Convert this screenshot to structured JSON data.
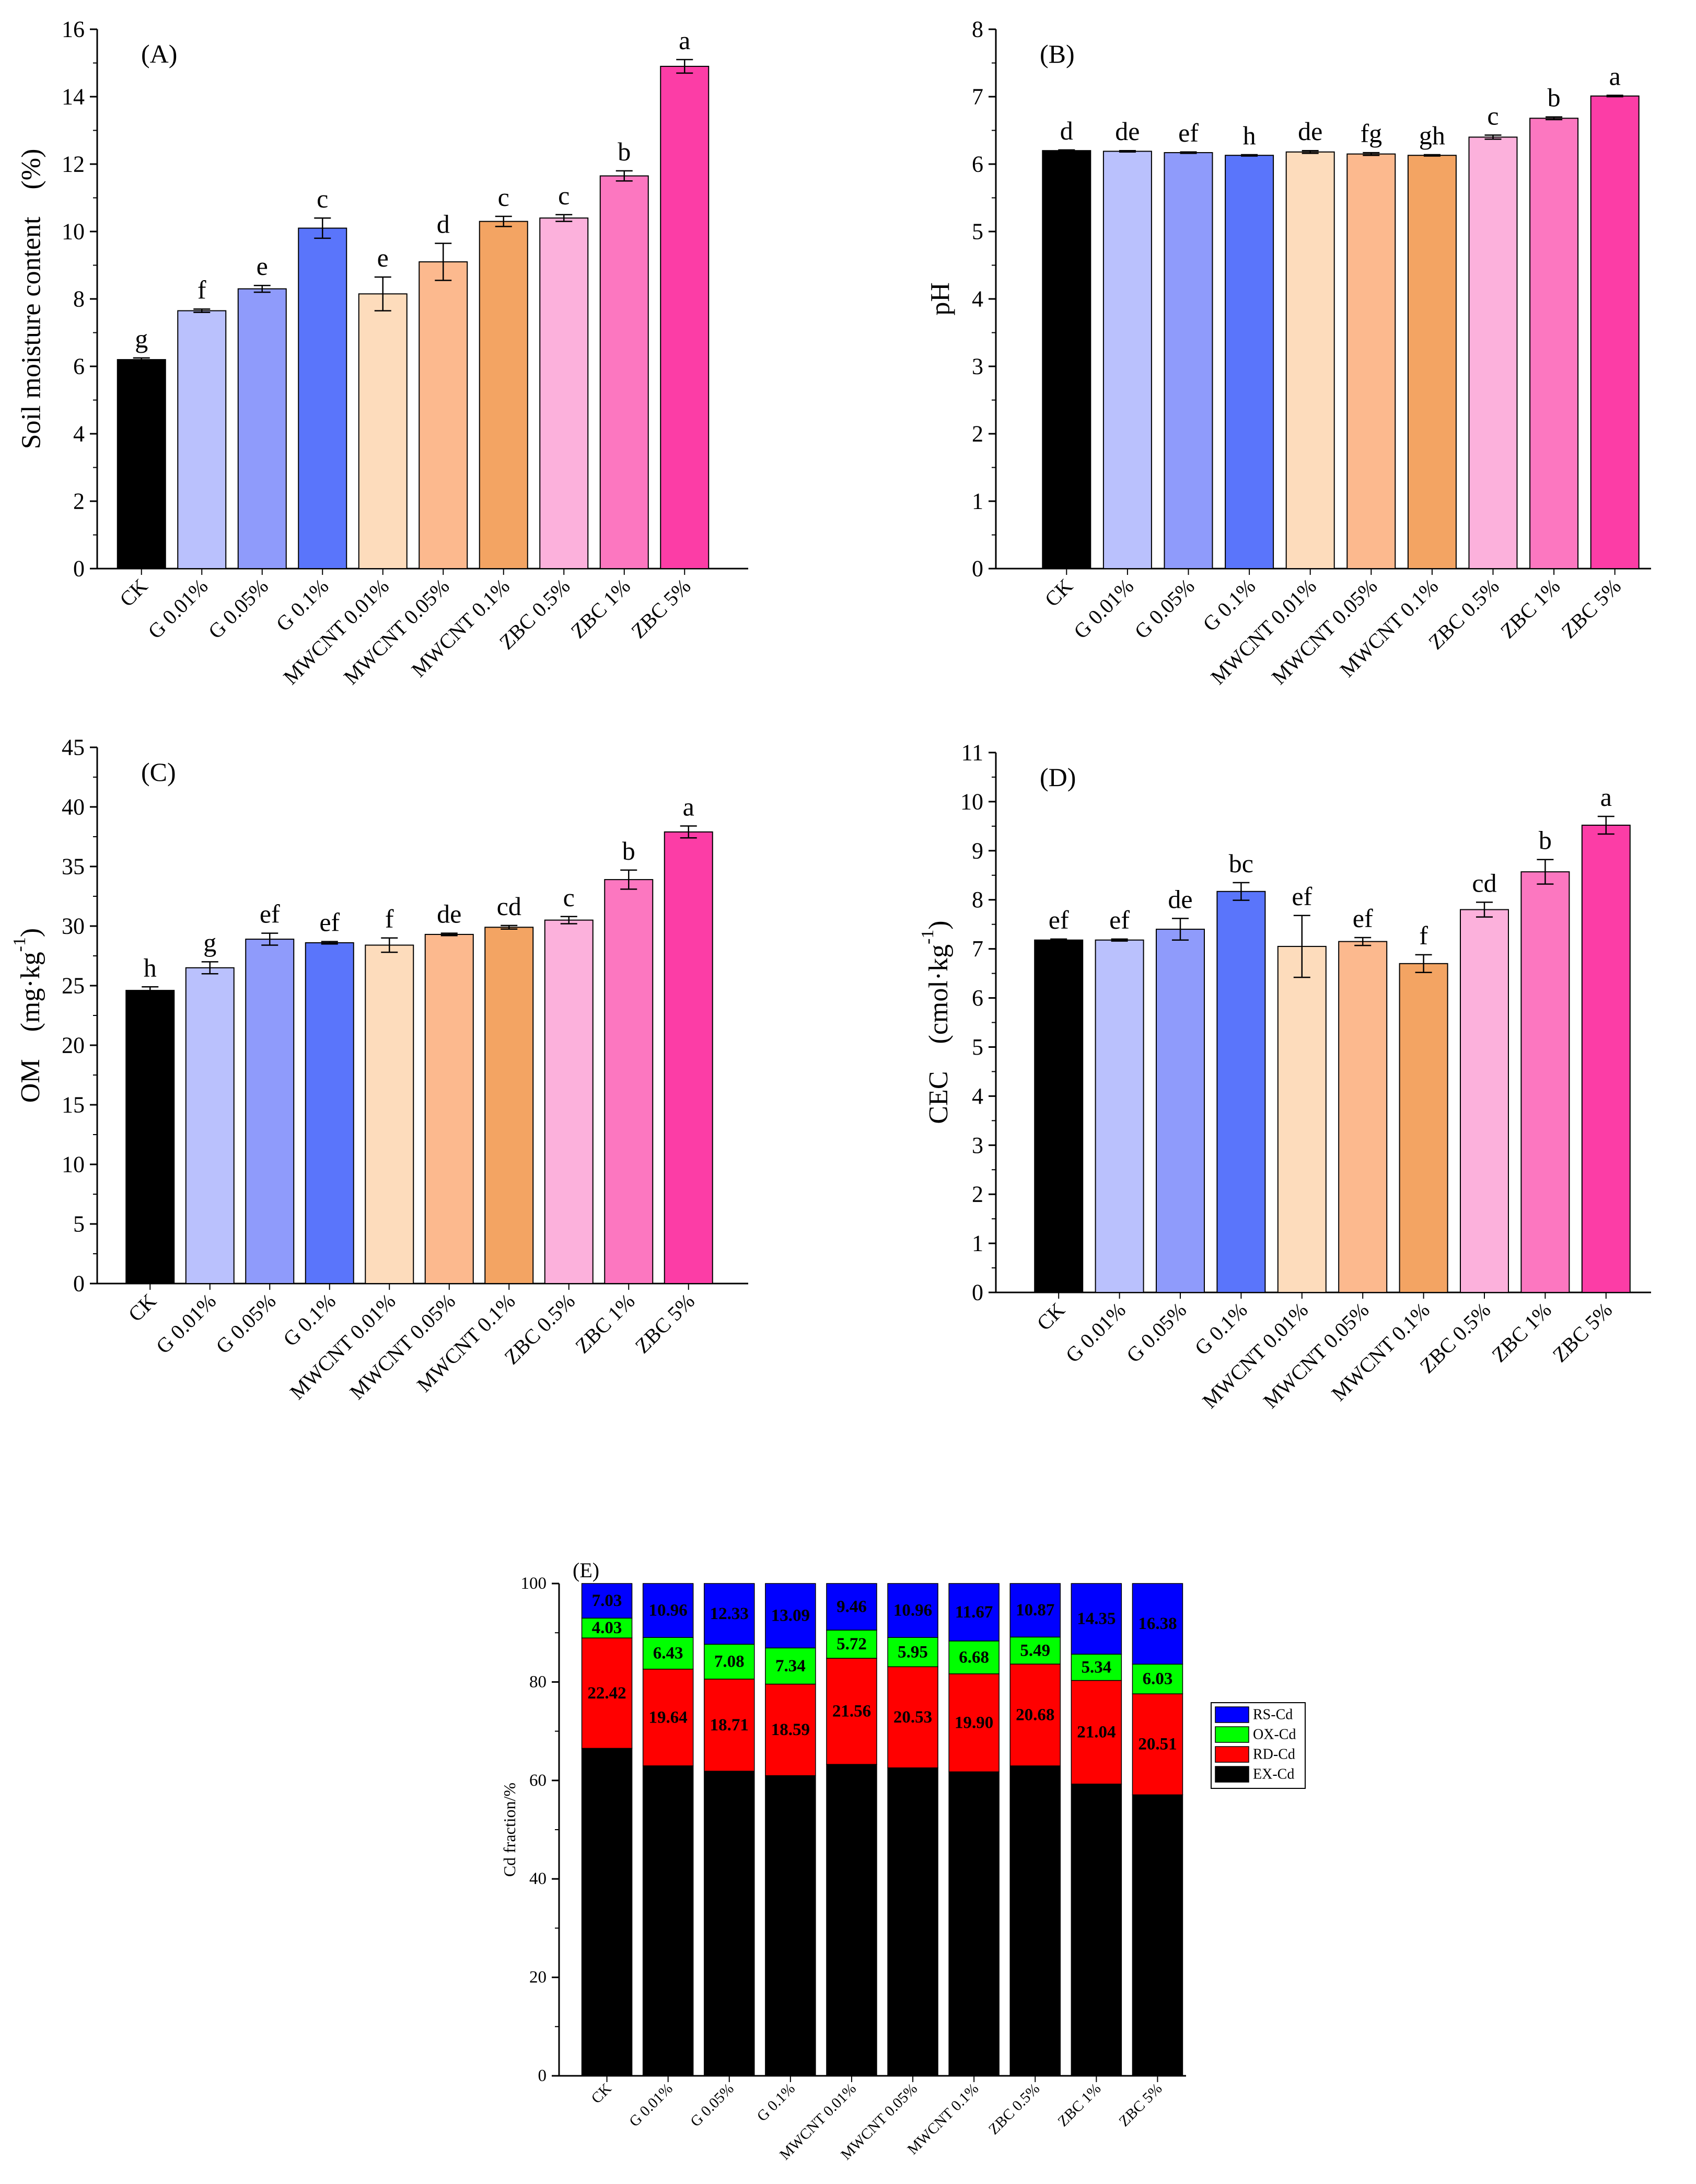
{
  "categories": [
    "CK",
    "G 0.01%",
    "G 0.05%",
    "G 0.1%",
    "MWCNT 0.01%",
    "MWCNT 0.05%",
    "MWCNT 0.1%",
    "ZBC 0.5%",
    "ZBC 1%",
    "ZBC 5%"
  ],
  "colors": [
    "#000000",
    "#bac1fd",
    "#8f9bfb",
    "#5a75fb",
    "#fddcbc",
    "#fcb98e",
    "#f3a463",
    "#fcb1dc",
    "#fc77c0",
    "#fc3da6"
  ],
  "chart_data": [
    {
      "id": "A",
      "type": "bar",
      "panel_label": "(A)",
      "ylabel": "Soil moisture content　(%)",
      "ylim": [
        0,
        16
      ],
      "yticks": [
        0,
        2,
        4,
        6,
        8,
        10,
        12,
        14,
        16
      ],
      "categories": [
        "CK",
        "G 0.01%",
        "G 0.05%",
        "G 0.1%",
        "MWCNT 0.01%",
        "MWCNT 0.05%",
        "MWCNT 0.1%",
        "ZBC 0.5%",
        "ZBC 1%",
        "ZBC 5%"
      ],
      "values": [
        6.2,
        7.65,
        8.3,
        10.1,
        8.15,
        9.1,
        10.3,
        10.4,
        11.65,
        14.9
      ],
      "errors": [
        0.05,
        0.05,
        0.1,
        0.3,
        0.5,
        0.55,
        0.15,
        0.1,
        0.15,
        0.2
      ],
      "letters": [
        "g",
        "f",
        "e",
        "c",
        "e",
        "d",
        "c",
        "c",
        "b",
        "a"
      ]
    },
    {
      "id": "B",
      "type": "bar",
      "panel_label": "(B)",
      "ylabel": "pH",
      "ylim": [
        0,
        8
      ],
      "yticks": [
        0,
        1,
        2,
        3,
        4,
        5,
        6,
        7,
        8
      ],
      "categories": [
        "CK",
        "G 0.01%",
        "G 0.05%",
        "G 0.1%",
        "MWCNT 0.01%",
        "MWCNT 0.05%",
        "MWCNT 0.1%",
        "ZBC 0.5%",
        "ZBC 1%",
        "ZBC 5%"
      ],
      "values": [
        6.2,
        6.19,
        6.17,
        6.13,
        6.18,
        6.15,
        6.13,
        6.4,
        6.68,
        7.01
      ],
      "errors": [
        0.01,
        0.01,
        0.01,
        0.01,
        0.02,
        0.02,
        0.01,
        0.03,
        0.02,
        0.01
      ],
      "letters": [
        "d",
        "de",
        "ef",
        "h",
        "de",
        "fg",
        "gh",
        "c",
        "b",
        "a"
      ]
    },
    {
      "id": "C",
      "type": "bar",
      "panel_label": "(C)",
      "ylabel_main": "OM　(mg·kg",
      "ylabel_sup": "-1",
      "ylabel_tail": ")",
      "ylim": [
        0,
        45
      ],
      "yticks": [
        0,
        5,
        10,
        15,
        20,
        25,
        30,
        35,
        40,
        45
      ],
      "categories": [
        "CK",
        "G 0.01%",
        "G 0.05%",
        "G 0.1%",
        "MWCNT 0.01%",
        "MWCNT 0.05%",
        "MWCNT 0.1%",
        "ZBC 0.5%",
        "ZBC 1%",
        "ZBC 5%"
      ],
      "values": [
        24.6,
        26.5,
        28.9,
        28.6,
        28.4,
        29.3,
        29.9,
        30.5,
        33.9,
        37.9
      ],
      "errors": [
        0.3,
        0.5,
        0.5,
        0.1,
        0.6,
        0.1,
        0.15,
        0.3,
        0.8,
        0.5
      ],
      "letters": [
        "h",
        "g",
        "ef",
        "ef",
        "f",
        "de",
        "cd",
        "c",
        "b",
        "a"
      ]
    },
    {
      "id": "D",
      "type": "bar",
      "panel_label": "(D)",
      "ylabel_main": "CEC　(cmol·kg",
      "ylabel_sup": "-1",
      "ylabel_tail": ")",
      "ylim": [
        0,
        11
      ],
      "yticks": [
        0,
        1,
        2,
        3,
        4,
        5,
        6,
        7,
        8,
        9,
        10,
        11
      ],
      "categories": [
        "CK",
        "G 0.01%",
        "G 0.05%",
        "G 0.1%",
        "MWCNT 0.01%",
        "MWCNT 0.05%",
        "MWCNT 0.1%",
        "ZBC 0.5%",
        "ZBC 1%",
        "ZBC 5%"
      ],
      "values": [
        7.18,
        7.18,
        7.4,
        8.17,
        7.05,
        7.15,
        6.7,
        7.8,
        8.57,
        9.52
      ],
      "errors": [
        0.02,
        0.02,
        0.22,
        0.18,
        0.63,
        0.08,
        0.18,
        0.15,
        0.25,
        0.18
      ],
      "letters": [
        "ef",
        "ef",
        "de",
        "bc",
        "ef",
        "ef",
        "f",
        "cd",
        "b",
        "a"
      ]
    },
    {
      "id": "E",
      "type": "bar",
      "stacked": true,
      "panel_label": "(E)",
      "ylabel": "Cd fraction/%",
      "ylim": [
        0,
        100
      ],
      "yticks": [
        0,
        20,
        40,
        60,
        80,
        100
      ],
      "categories": [
        "CK",
        "G 0.01%",
        "G 0.05%",
        "G 0.1%",
        "MWCNT 0.01%",
        "MWCNT 0.05%",
        "MWCNT 0.1%",
        "ZBC 0.5%",
        "ZBC 1%",
        "ZBC 5%"
      ],
      "series": [
        {
          "name": "EX-Cd",
          "color": "#000000",
          "label_color": "#ffffff",
          "values": [
            66.52,
            62.97,
            61.88,
            60.98,
            63.26,
            62.56,
            61.75,
            62.96,
            59.27,
            57.08
          ]
        },
        {
          "name": "RD-Cd",
          "color": "#ff0000",
          "label_color": "#000000",
          "values": [
            22.42,
            19.64,
            18.71,
            18.59,
            21.56,
            20.53,
            19.9,
            20.68,
            21.04,
            20.51
          ]
        },
        {
          "name": "OX-Cd",
          "color": "#00ff00",
          "label_color": "#000000",
          "values": [
            4.03,
            6.43,
            7.08,
            7.34,
            5.72,
            5.95,
            6.68,
            5.49,
            5.34,
            6.03
          ]
        },
        {
          "name": "RS-Cd",
          "color": "#0000ff",
          "label_color": "#000000",
          "values": [
            7.03,
            10.96,
            12.33,
            13.09,
            9.46,
            10.96,
            11.67,
            10.87,
            14.35,
            16.38
          ]
        }
      ],
      "legend_order": [
        "RS-Cd",
        "OX-Cd",
        "RD-Cd",
        "EX-Cd"
      ],
      "legend_position": "right"
    }
  ]
}
